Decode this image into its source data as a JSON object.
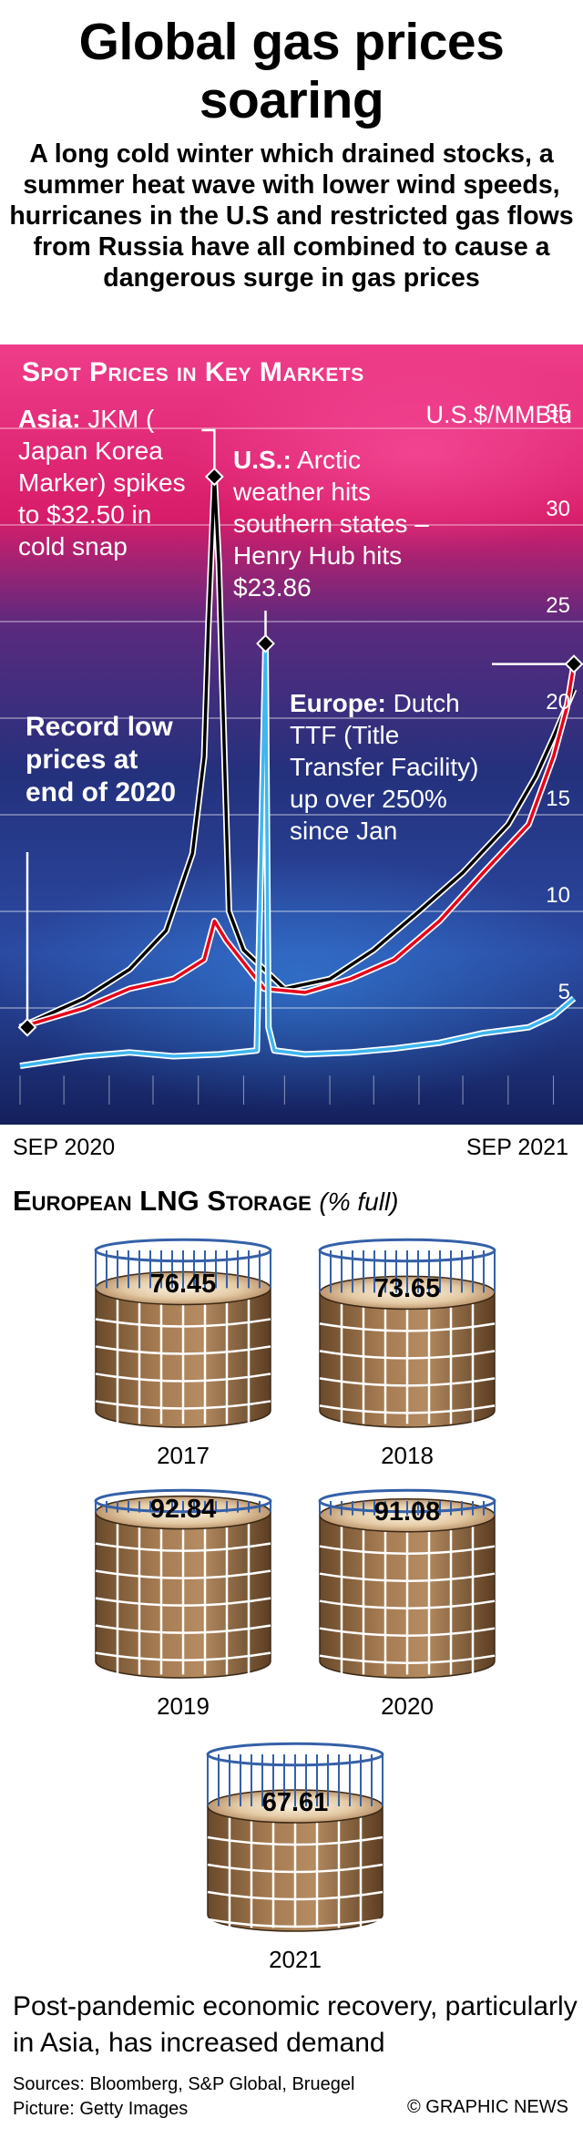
{
  "header": {
    "title": "Global gas prices soaring",
    "subtitle": "A long cold winter which drained stocks, a summer heat wave with lower wind speeds, hurricanes in the U.S and restricted gas flows from Russia have all combined to cause a dangerous surge in gas prices"
  },
  "colors": {
    "asia": "#000000",
    "europe": "#e8001a",
    "us": "#3fb6f0",
    "background_top": "#ec2a74",
    "background_bottom": "#1a2a78"
  },
  "chart_data": {
    "type": "line",
    "title": "Spot Prices in Key Markets",
    "ylabel": "U.S.$/MMBtu",
    "ylim": [
      0,
      37
    ],
    "y_ticks": [
      5,
      10,
      15,
      20,
      25,
      30,
      35
    ],
    "x_start_label": "SEP 2020",
    "x_end_label": "SEP 2021",
    "x_range": [
      "2020-09",
      "2021-09"
    ],
    "series": [
      {
        "name": "Asia",
        "x": [
          "2020-09-01",
          "2020-10-15",
          "2020-11-15",
          "2020-12-10",
          "2020-12-28",
          "2021-01-05",
          "2021-01-08",
          "2021-01-12",
          "2021-01-15",
          "2021-01-22",
          "2021-02-01",
          "2021-03-01",
          "2021-04-01",
          "2021-05-01",
          "2021-06-01",
          "2021-07-01",
          "2021-08-01",
          "2021-08-20",
          "2021-09-01",
          "2021-09-15"
        ],
        "y": [
          4.0,
          5.5,
          7.0,
          9.0,
          13.0,
          18.0,
          25.0,
          32.5,
          28.0,
          10.0,
          8.0,
          6.0,
          6.5,
          8.0,
          10.0,
          12.0,
          14.5,
          17.0,
          19.0,
          21.5
        ]
      },
      {
        "name": "Europe",
        "x": [
          "2020-09-01",
          "2020-10-15",
          "2020-11-15",
          "2020-12-15",
          "2021-01-05",
          "2021-01-12",
          "2021-01-20",
          "2021-02-15",
          "2021-03-15",
          "2021-04-15",
          "2021-05-15",
          "2021-06-15",
          "2021-07-15",
          "2021-08-15",
          "2021-09-01",
          "2021-09-10",
          "2021-09-15"
        ],
        "y": [
          4.0,
          5.0,
          6.0,
          6.5,
          7.5,
          9.5,
          8.5,
          6.0,
          5.8,
          6.5,
          7.5,
          9.5,
          12.0,
          14.5,
          18.0,
          20.5,
          22.8
        ]
      },
      {
        "name": "U.S.",
        "x": [
          "2020-09-01",
          "2020-10-15",
          "2020-11-15",
          "2020-12-15",
          "2021-01-15",
          "2021-02-10",
          "2021-02-16",
          "2021-02-18",
          "2021-02-22",
          "2021-03-15",
          "2021-04-15",
          "2021-05-15",
          "2021-06-15",
          "2021-07-15",
          "2021-08-15",
          "2021-09-01",
          "2021-09-15"
        ],
        "y": [
          2.0,
          2.5,
          2.7,
          2.5,
          2.6,
          2.8,
          23.86,
          4.0,
          2.8,
          2.6,
          2.7,
          2.9,
          3.2,
          3.7,
          4.0,
          4.6,
          5.5
        ]
      }
    ],
    "annotations": {
      "asia_label": "Asia:",
      "asia_text": "JKM ( Japan Korea Marker) spikes to $32.50 in cold snap",
      "us_label": "U.S.:",
      "us_text": "Arctic weather hits southern states – Henry Hub hits $23.86",
      "europe_label": "Europe:",
      "europe_text": "Dutch TTF (Title Transfer Facility) up over 250% since Jan",
      "record": "Record low prices at end of 2020"
    }
  },
  "storage": {
    "heading": "European LNG Storage",
    "unit": "(% full)",
    "tanks": [
      {
        "year": "2017",
        "value": "76.45",
        "fill": 76.45
      },
      {
        "year": "2018",
        "value": "73.65",
        "fill": 73.65
      },
      {
        "year": "2019",
        "value": "92.84",
        "fill": 92.84
      },
      {
        "year": "2020",
        "value": "91.08",
        "fill": 91.08
      },
      {
        "year": "2021",
        "value": "67.61",
        "fill": 67.61
      }
    ]
  },
  "footer": {
    "note": "Post-pandemic economic recovery, particularly in Asia, has increased demand",
    "sources": "Sources:  Bloomberg, S&P Global, Bruegel",
    "picture": "Picture: Getty Images",
    "credit": "© GRAPHIC NEWS"
  }
}
